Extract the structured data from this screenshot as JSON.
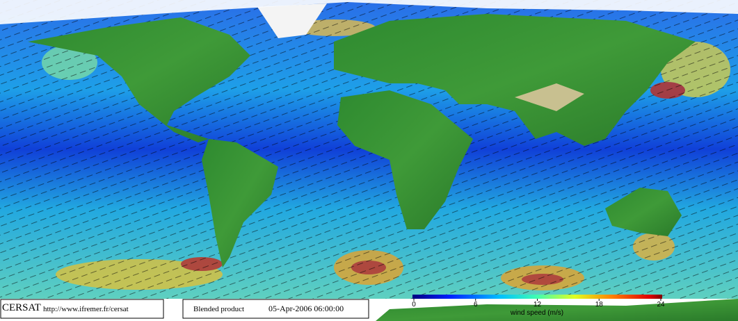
{
  "footer": {
    "logo": "CERSAT",
    "url": "http://www.ifremer.fr/cersat",
    "product": "Blended product",
    "date": "05-Apr-2006 06:00:00"
  },
  "colorbar": {
    "label": "wind speed (m/s)",
    "range": [
      0,
      24
    ],
    "ticks": [
      0,
      6,
      12,
      18,
      24
    ]
  }
}
